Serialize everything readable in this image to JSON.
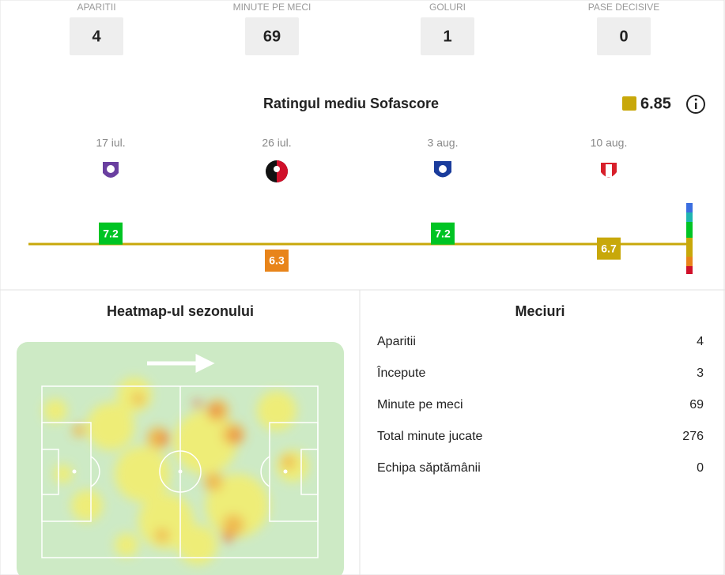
{
  "stats": [
    {
      "label": "APARITII",
      "value": "4"
    },
    {
      "label": "MINUTE PE MECI",
      "value": "69"
    },
    {
      "label": "GOLURI",
      "value": "1"
    },
    {
      "label": "PASE DECISIVE",
      "value": "0"
    }
  ],
  "rating": {
    "title": "Ratingul mediu Sofascore",
    "average": 6.85,
    "average_color": "#c8a80a",
    "matches": [
      {
        "date": "17 iul.",
        "rating": 7.2,
        "color": "#00c424"
      },
      {
        "date": "26 iul.",
        "rating": 6.3,
        "color": "#e8841a"
      },
      {
        "date": "3 aug.",
        "rating": 7.2,
        "color": "#00c424"
      },
      {
        "date": "10 aug.",
        "rating": 6.7,
        "color": "#c8a80a"
      }
    ]
  },
  "heatmap": {
    "title": "Heatmap-ul sezonului"
  },
  "matches": {
    "title": "Meciuri",
    "rows": [
      [
        "Aparitii",
        "4"
      ],
      [
        "Începute",
        "3"
      ],
      [
        "Minute pe meci",
        "69"
      ],
      [
        "Total minute jucate",
        "276"
      ],
      [
        "Echipa săptămânii",
        "0"
      ]
    ]
  }
}
